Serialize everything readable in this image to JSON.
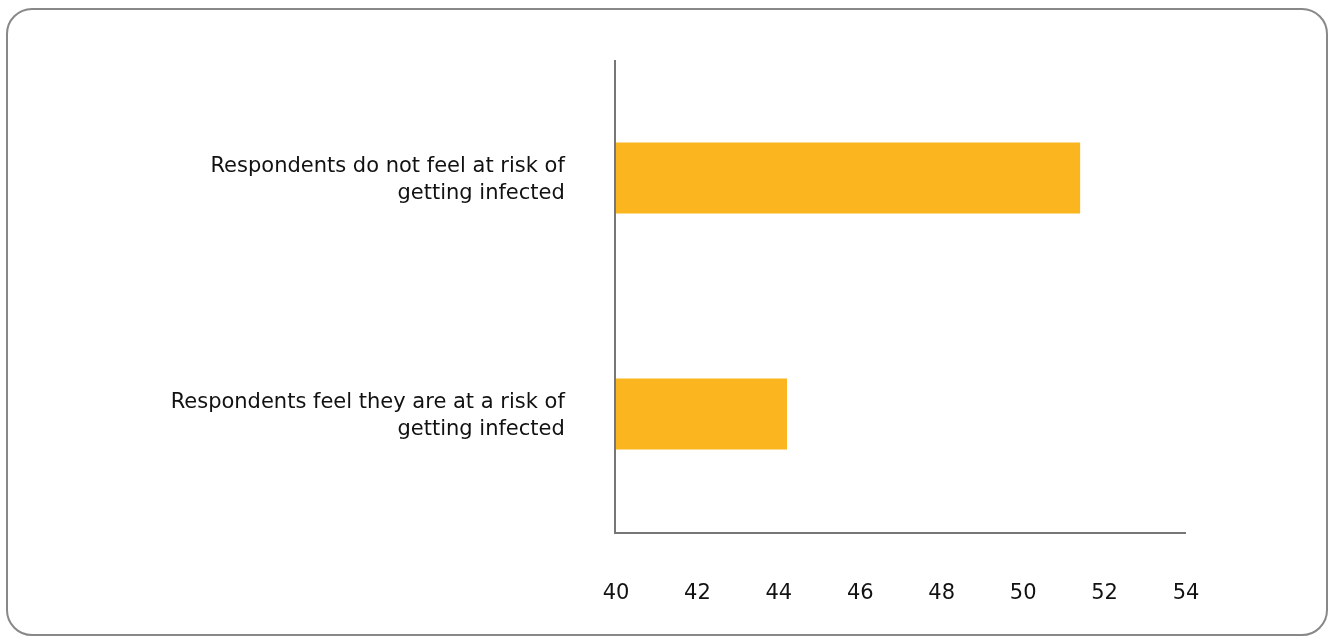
{
  "chart_data": {
    "type": "bar",
    "orientation": "horizontal",
    "categories": [
      "Respondents do not feel at risk of getting infected",
      "Respondents feel they are at a risk of getting infected"
    ],
    "values": [
      51.4,
      44.2
    ],
    "color": "#fbb51f",
    "xlim": [
      40,
      54
    ],
    "xticks": [
      40,
      42,
      44,
      46,
      48,
      50,
      52,
      54
    ]
  }
}
